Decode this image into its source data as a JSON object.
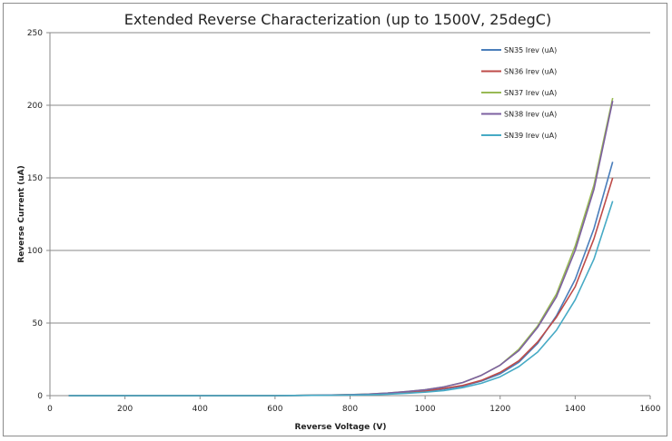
{
  "chart_data": {
    "type": "line",
    "title": "Extended Reverse Characterization (up to 1500V, 25degC)",
    "xlabel": "Reverse Voltage (V)",
    "ylabel": "Reverse Current (uA)",
    "xlim": [
      0,
      1600
    ],
    "ylim": [
      0,
      250
    ],
    "x_ticks": [
      "0",
      "200",
      "400",
      "600",
      "800",
      "1000",
      "1200",
      "1400",
      "1600"
    ],
    "y_ticks": [
      "0",
      "50",
      "100",
      "150",
      "200",
      "250"
    ],
    "grid": "horizontal",
    "legend_position": "top-right",
    "x": [
      50,
      100,
      150,
      200,
      250,
      300,
      350,
      400,
      450,
      500,
      550,
      600,
      650,
      700,
      750,
      800,
      850,
      900,
      950,
      1000,
      1050,
      1100,
      1150,
      1200,
      1250,
      1300,
      1350,
      1400,
      1450,
      1500
    ],
    "series": [
      {
        "name": "SN35 Irev (uA)",
        "color": "#4a7ebb",
        "values": [
          0,
          0,
          0,
          0,
          0,
          0,
          0,
          0,
          0,
          0,
          0,
          0,
          0.1,
          0.2,
          0.3,
          0.5,
          0.8,
          1.3,
          2,
          3,
          4.5,
          6.5,
          10,
          15,
          23,
          36,
          55,
          80,
          115,
          161
        ]
      },
      {
        "name": "SN36 Irev (uA)",
        "color": "#be4b48",
        "values": [
          0,
          0,
          0,
          0,
          0,
          0,
          0,
          0,
          0,
          0,
          0,
          0,
          0.1,
          0.2,
          0.3,
          0.5,
          0.8,
          1.4,
          2.2,
          3.2,
          5,
          7,
          10.5,
          16,
          24,
          37,
          54,
          75,
          108,
          150
        ]
      },
      {
        "name": "SN37 Irev (uA)",
        "color": "#98b954",
        "values": [
          0,
          0,
          0,
          0,
          0,
          0,
          0,
          0,
          0,
          0,
          0,
          0,
          0.1,
          0.3,
          0.4,
          0.7,
          1.1,
          1.8,
          2.8,
          4,
          6,
          9,
          14,
          21,
          32,
          48,
          70,
          103,
          145,
          205
        ]
      },
      {
        "name": "SN38 Irev (uA)",
        "color": "#7d60a0",
        "values": [
          0,
          0,
          0,
          0,
          0,
          0,
          0,
          0,
          0,
          0,
          0,
          0,
          0.1,
          0.3,
          0.4,
          0.7,
          1.1,
          1.8,
          2.8,
          4,
          6,
          9,
          14,
          21,
          31,
          47,
          68,
          100,
          142,
          203
        ]
      },
      {
        "name": "SN39 Irev (uA)",
        "color": "#46aac5",
        "values": [
          0,
          0,
          0,
          0,
          0,
          0,
          0,
          0,
          0,
          0,
          0,
          0,
          0.1,
          0.2,
          0.3,
          0.4,
          0.6,
          1,
          1.6,
          2.4,
          3.5,
          5.5,
          8.5,
          13,
          20,
          30,
          45,
          66,
          94,
          134
        ]
      }
    ]
  }
}
